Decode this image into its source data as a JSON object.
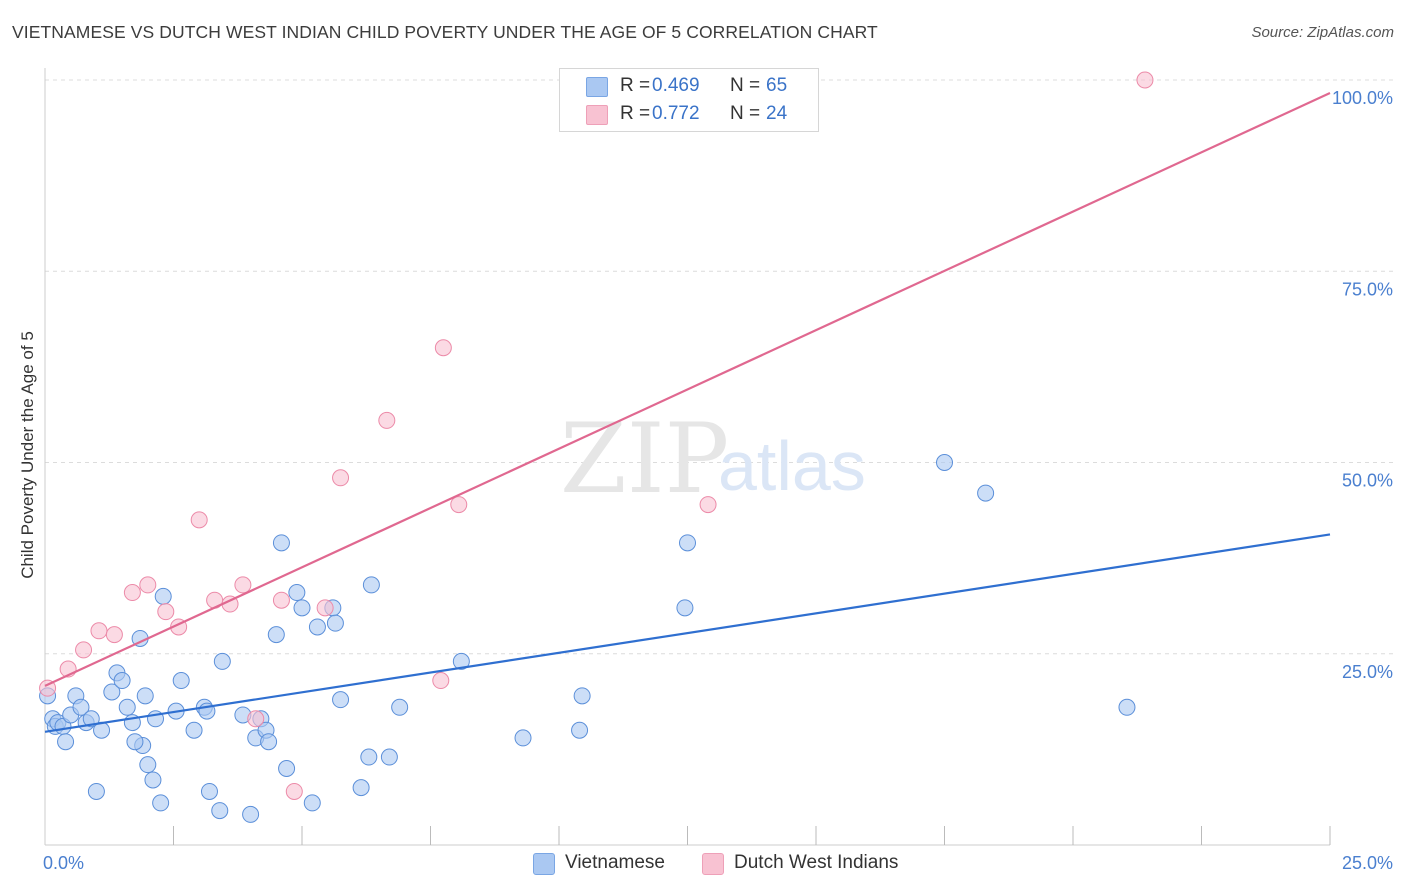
{
  "title": "VIETNAMESE VS DUTCH WEST INDIAN CHILD POVERTY UNDER THE AGE OF 5 CORRELATION CHART",
  "source": "Source: ZipAtlas.com",
  "watermark": {
    "zip": "ZIP",
    "atlas": "atlas"
  },
  "legend": {
    "rows": [
      {
        "r_label": "R =",
        "r_value": "0.469",
        "n_label": "N =",
        "n_value": "65",
        "color": "#aac8f2"
      },
      {
        "r_label": "R =",
        "r_value": "0.772",
        "n_label": "N =",
        "n_value": "24",
        "color": "#f8c2d2"
      }
    ]
  },
  "chart_data": {
    "type": "scatter",
    "title": "VIETNAMESE VS DUTCH WEST INDIAN CHILD POVERTY UNDER THE AGE OF 5 CORRELATION CHART",
    "xlabel": "",
    "ylabel": "Child Poverty Under the Age of 5",
    "xlim": [
      0,
      25
    ],
    "ylim": [
      0,
      100
    ],
    "x_tick_labels": [
      "0.0%",
      "25.0%"
    ],
    "y_ticks": [
      25,
      50,
      75,
      100
    ],
    "y_tick_labels": [
      "25.0%",
      "50.0%",
      "75.0%",
      "100.0%"
    ],
    "grid": true,
    "legend_position": "top-center",
    "series": [
      {
        "name": "Vietnamese",
        "color": "#5b8fd9",
        "fill": "#aac8f2",
        "trend": {
          "x": [
            0,
            25
          ],
          "y": [
            14.8,
            40.6
          ],
          "color": "#2f6fd0"
        },
        "points": [
          [
            0.05,
            19.5
          ],
          [
            0.15,
            16.5
          ],
          [
            0.2,
            15.5
          ],
          [
            0.25,
            16.0
          ],
          [
            0.35,
            15.5
          ],
          [
            0.4,
            13.5
          ],
          [
            0.5,
            17.0
          ],
          [
            0.6,
            19.5
          ],
          [
            0.7,
            18.0
          ],
          [
            0.8,
            16.0
          ],
          [
            0.9,
            16.5
          ],
          [
            1.1,
            15.0
          ],
          [
            1.0,
            7.0
          ],
          [
            1.3,
            20.0
          ],
          [
            1.4,
            22.5
          ],
          [
            1.5,
            21.5
          ],
          [
            1.6,
            18.0
          ],
          [
            1.7,
            16.0
          ],
          [
            1.85,
            27.0
          ],
          [
            1.9,
            13.0
          ],
          [
            1.75,
            13.5
          ],
          [
            1.95,
            19.5
          ],
          [
            2.0,
            10.5
          ],
          [
            2.1,
            8.5
          ],
          [
            2.15,
            16.5
          ],
          [
            2.25,
            5.5
          ],
          [
            2.3,
            32.5
          ],
          [
            2.55,
            17.5
          ],
          [
            2.65,
            21.5
          ],
          [
            2.9,
            15.0
          ],
          [
            3.1,
            18.0
          ],
          [
            3.15,
            17.5
          ],
          [
            3.2,
            7.0
          ],
          [
            3.4,
            4.5
          ],
          [
            3.45,
            24.0
          ],
          [
            3.85,
            17.0
          ],
          [
            4.0,
            4.0
          ],
          [
            4.1,
            14.0
          ],
          [
            4.2,
            16.5
          ],
          [
            4.3,
            15.0
          ],
          [
            4.35,
            13.5
          ],
          [
            4.5,
            27.5
          ],
          [
            4.6,
            39.5
          ],
          [
            4.7,
            10.0
          ],
          [
            4.9,
            33.0
          ],
          [
            5.0,
            31.0
          ],
          [
            5.2,
            5.5
          ],
          [
            5.3,
            28.5
          ],
          [
            5.6,
            31.0
          ],
          [
            5.65,
            29.0
          ],
          [
            5.75,
            19.0
          ],
          [
            6.15,
            7.5
          ],
          [
            6.3,
            11.5
          ],
          [
            6.35,
            34.0
          ],
          [
            6.7,
            11.5
          ],
          [
            6.9,
            18.0
          ],
          [
            8.1,
            24.0
          ],
          [
            9.3,
            14.0
          ],
          [
            10.4,
            15.0
          ],
          [
            10.45,
            19.5
          ],
          [
            12.5,
            39.5
          ],
          [
            12.45,
            31.0
          ],
          [
            17.5,
            50.0
          ],
          [
            18.3,
            46.0
          ],
          [
            21.05,
            18.0
          ]
        ]
      },
      {
        "name": "Dutch West Indians",
        "color": "#ec8aa8",
        "fill": "#f8c2d2",
        "trend": {
          "x": [
            0,
            25
          ],
          "y": [
            20.8,
            98.3
          ],
          "color": "#e06890"
        },
        "points": [
          [
            0.05,
            20.5
          ],
          [
            0.45,
            23.0
          ],
          [
            0.75,
            25.5
          ],
          [
            1.05,
            28.0
          ],
          [
            1.35,
            27.5
          ],
          [
            1.7,
            33.0
          ],
          [
            2.0,
            34.0
          ],
          [
            2.35,
            30.5
          ],
          [
            2.6,
            28.5
          ],
          [
            3.0,
            42.5
          ],
          [
            3.3,
            32.0
          ],
          [
            3.6,
            31.5
          ],
          [
            3.85,
            34.0
          ],
          [
            4.1,
            16.5
          ],
          [
            4.6,
            32.0
          ],
          [
            4.85,
            7.0
          ],
          [
            5.45,
            31.0
          ],
          [
            5.75,
            48.0
          ],
          [
            6.65,
            55.5
          ],
          [
            7.7,
            21.5
          ],
          [
            7.75,
            65.0
          ],
          [
            8.05,
            44.5
          ],
          [
            12.9,
            44.5
          ],
          [
            21.4,
            100.0
          ]
        ]
      }
    ]
  }
}
